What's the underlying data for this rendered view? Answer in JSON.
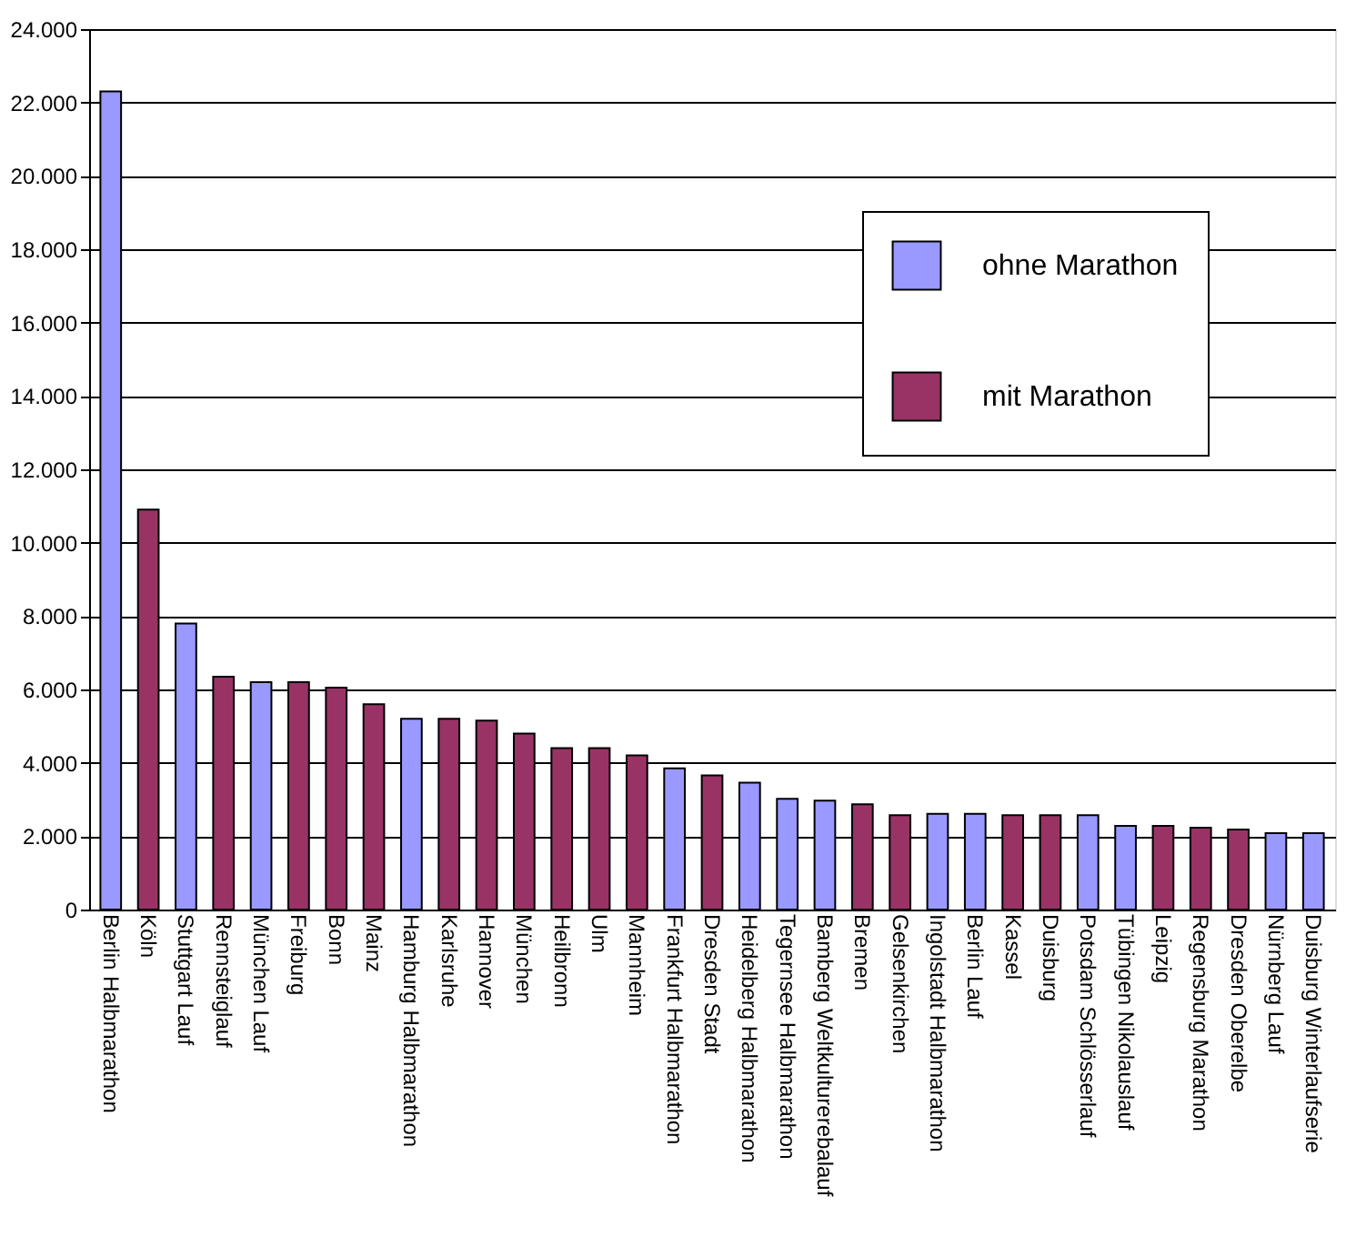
{
  "chart_data": {
    "type": "bar",
    "categories": [
      "Berlin Halbmarathon",
      "Köln",
      "Stuttgart Lauf",
      "Rennsteiglauf",
      "München Lauf",
      "Freiburg",
      "Bonn",
      "Mainz",
      "Hamburg Halbmarathon",
      "Karlsruhe",
      "Hannover",
      "München",
      "Heilbronn",
      "Ulm",
      "Mannheim",
      "Frankfurt Halbmarathon",
      "Dresden Stadt",
      "Heidelberg Halbmarathon",
      "Tegernsee Halbmarathon",
      "Bamberg Weltkulturerebalauf",
      "Bremen",
      "Gelsenkirchen",
      "Ingolstadt Halbmarathon",
      "Berlin Lauf",
      "Kassel",
      "Duisburg",
      "Potsdam Schlösserlauf",
      "Tübingen Nikolauslauf",
      "Leipzig",
      "Regensburg Marathon",
      "Dresden Oberelbe",
      "Nürnberg Lauf",
      "Duisburg Winterlaufserie"
    ],
    "series": [
      {
        "name": "ohne Marathon",
        "color": "#9999ff",
        "values": [
          22300,
          null,
          7800,
          null,
          6200,
          null,
          null,
          null,
          5200,
          null,
          null,
          null,
          null,
          null,
          null,
          3850,
          null,
          3460,
          3020,
          2970,
          null,
          null,
          2610,
          2610,
          null,
          null,
          2570,
          2280,
          null,
          null,
          null,
          2080,
          2080
        ]
      },
      {
        "name": "mit Marathon",
        "color": "#993366",
        "values": [
          null,
          10900,
          null,
          6350,
          null,
          6200,
          6050,
          5600,
          null,
          5200,
          5150,
          4800,
          4400,
          4400,
          4200,
          null,
          3660,
          null,
          null,
          null,
          2870,
          2570,
          null,
          null,
          2570,
          2570,
          null,
          null,
          2280,
          2230,
          2180,
          null,
          null
        ]
      }
    ],
    "ylim": [
      0,
      24000
    ],
    "yticks": [
      0,
      {
        "value": 2000,
        "label": "2.000"
      },
      {
        "value": 4000,
        "label": "4.000"
      },
      {
        "value": 6000,
        "label": "6.000"
      },
      {
        "value": 8000,
        "label": "8.000"
      },
      {
        "value": 10000,
        "label": "10.000"
      },
      {
        "value": 12000,
        "label": "12.000"
      },
      {
        "value": 14000,
        "label": "14.000"
      },
      {
        "value": 16000,
        "label": "16.000"
      },
      {
        "value": 18000,
        "label": "18.000"
      },
      {
        "value": 20000,
        "label": "20.000"
      },
      {
        "value": 22000,
        "label": "22.000"
      },
      {
        "value": 24000,
        "label": "24.000"
      }
    ],
    "grid": "y",
    "legend": "top right"
  }
}
